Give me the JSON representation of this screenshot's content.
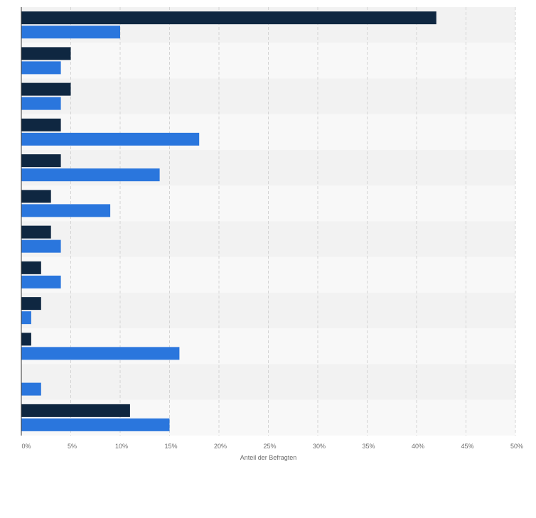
{
  "chart_data": {
    "type": "bar",
    "orientation": "horizontal",
    "categories": [
      "",
      "",
      "",
      "",
      "",
      "",
      "",
      "",
      "",
      "",
      "",
      ""
    ],
    "series": [
      {
        "values": [
          42,
          5,
          5,
          4,
          4,
          3,
          3,
          2,
          2,
          1,
          0,
          11
        ],
        "color": "#0f2741"
      },
      {
        "values": [
          10,
          4,
          4,
          18,
          14,
          9,
          4,
          4,
          1,
          16,
          2,
          15
        ],
        "color": "#2a76dd"
      }
    ],
    "xlim": [
      0,
      50
    ],
    "x_ticks": [
      "0%",
      "5%",
      "10%",
      "15%",
      "20%",
      "25%",
      "30%",
      "35%",
      "40%",
      "45%",
      "50%"
    ],
    "xlabel": "Anteil der Befragten",
    "ylabel": "",
    "title": "",
    "grid": true,
    "legend": "none"
  }
}
